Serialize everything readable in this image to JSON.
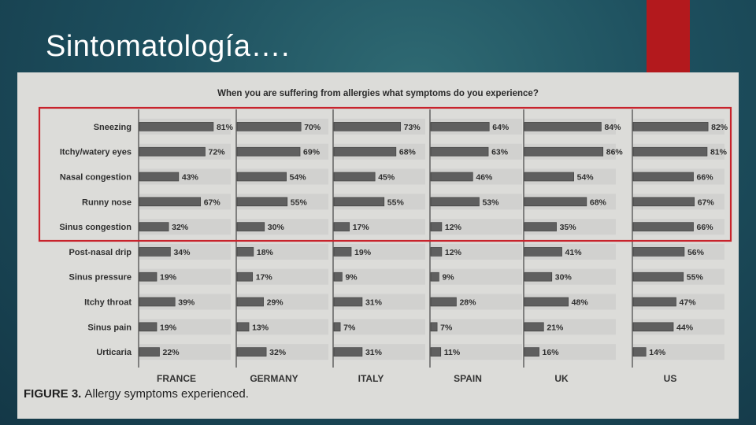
{
  "slide": {
    "title": "Sintomatología…."
  },
  "chart_data": {
    "type": "bar",
    "orientation": "horizontal",
    "title": "When you are suffering from allergies what symptoms do you experience?",
    "caption_label": "FIGURE 3.",
    "caption_text": "Allergy symptoms experienced.",
    "categories": [
      "Sneezing",
      "Itchy/watery eyes",
      "Nasal congestion",
      "Runny nose",
      "Sinus congestion",
      "Post-nasal drip",
      "Sinus pressure",
      "Itchy throat",
      "Sinus pain",
      "Urticaria"
    ],
    "series": [
      {
        "name": "FRANCE",
        "values": [
          81,
          72,
          43,
          67,
          32,
          34,
          19,
          39,
          19,
          22
        ]
      },
      {
        "name": "GERMANY",
        "values": [
          70,
          69,
          54,
          55,
          30,
          18,
          17,
          29,
          13,
          32
        ]
      },
      {
        "name": "ITALY",
        "values": [
          73,
          68,
          45,
          55,
          17,
          19,
          9,
          31,
          7,
          31
        ]
      },
      {
        "name": "SPAIN",
        "values": [
          64,
          63,
          46,
          53,
          12,
          12,
          9,
          28,
          7,
          11
        ]
      },
      {
        "name": "UK",
        "values": [
          84,
          86,
          54,
          68,
          35,
          41,
          30,
          48,
          21,
          16
        ]
      },
      {
        "name": "US",
        "values": [
          82,
          81,
          66,
          67,
          66,
          56,
          55,
          47,
          44,
          14
        ]
      }
    ],
    "unit": "%",
    "xlim": [
      0,
      100
    ],
    "highlight": {
      "rows": [
        0,
        4
      ],
      "color": "#c8232c"
    },
    "bar_color": "#5f5f5f",
    "track_color": "#c9c9c6"
  }
}
